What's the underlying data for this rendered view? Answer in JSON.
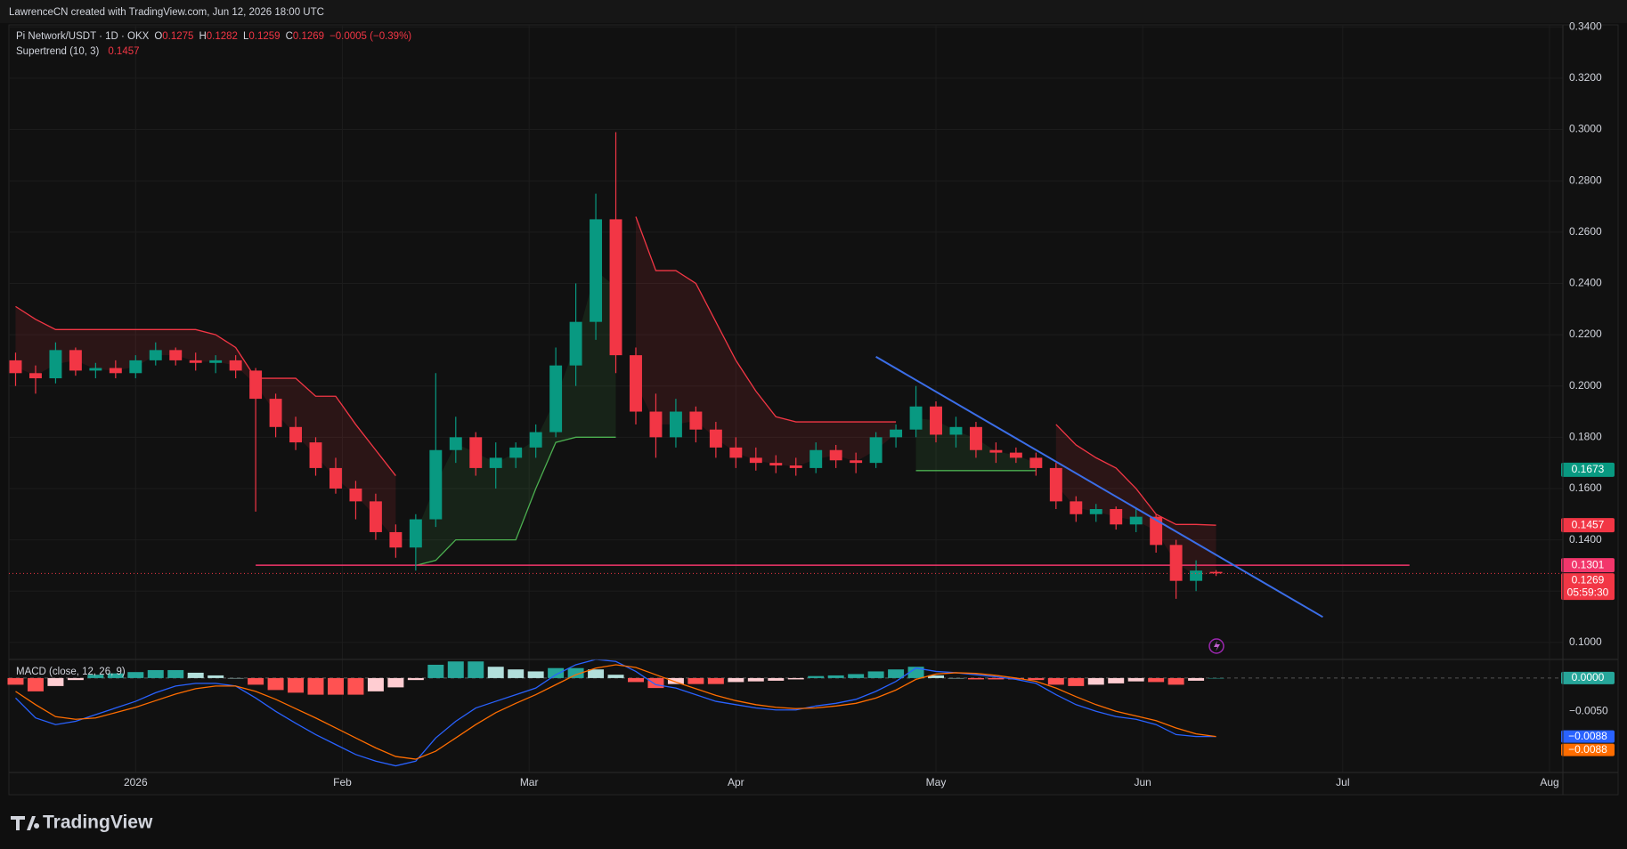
{
  "header": {
    "watermark": "LawrenceCN created with TradingView.com, Jun 12, 2026 18:00 UTC",
    "brand": "TradingView"
  },
  "chart_data": [
    {
      "type": "candlestick",
      "title": "Pi Network/USDT · 1D · OKX",
      "ohlc_letters": [
        "O",
        "H",
        "L",
        "C"
      ],
      "change": "−0.0005 (−0.39%)",
      "x": [
        -18,
        -15,
        -12,
        -9,
        -6,
        -3,
        0,
        3,
        6,
        9,
        12,
        15,
        18,
        21,
        24,
        27,
        30,
        33,
        36,
        39,
        42,
        45,
        48,
        51,
        54,
        57,
        60,
        63,
        66,
        69,
        72,
        75,
        78,
        81,
        84,
        87,
        90,
        93,
        96,
        99,
        102,
        105,
        108,
        111,
        114,
        117,
        120,
        123,
        126,
        129,
        132,
        135,
        138,
        141,
        144,
        147,
        150,
        153,
        156,
        159,
        162
      ],
      "open": [
        0.21,
        0.205,
        0.203,
        0.214,
        0.206,
        0.207,
        0.205,
        0.21,
        0.214,
        0.21,
        0.209,
        0.21,
        0.206,
        0.195,
        0.184,
        0.178,
        0.168,
        0.16,
        0.155,
        0.143,
        0.137,
        0.148,
        0.175,
        0.18,
        0.168,
        0.172,
        0.176,
        0.182,
        0.208,
        0.225,
        0.265,
        0.212,
        0.19,
        0.18,
        0.19,
        0.183,
        0.176,
        0.172,
        0.17,
        0.169,
        0.168,
        0.175,
        0.171,
        0.17,
        0.18,
        0.183,
        0.192,
        0.181,
        0.184,
        0.175,
        0.174,
        0.172,
        0.168,
        0.155,
        0.15,
        0.152,
        0.146,
        0.149,
        0.138,
        0.124,
        0.1275
      ],
      "high": [
        0.213,
        0.208,
        0.217,
        0.215,
        0.209,
        0.21,
        0.212,
        0.217,
        0.215,
        0.213,
        0.212,
        0.212,
        0.207,
        0.197,
        0.188,
        0.18,
        0.172,
        0.163,
        0.158,
        0.146,
        0.15,
        0.205,
        0.188,
        0.182,
        0.178,
        0.178,
        0.185,
        0.215,
        0.24,
        0.275,
        0.299,
        0.215,
        0.197,
        0.195,
        0.192,
        0.186,
        0.18,
        0.176,
        0.173,
        0.172,
        0.178,
        0.177,
        0.174,
        0.182,
        0.185,
        0.2,
        0.194,
        0.188,
        0.186,
        0.178,
        0.176,
        0.174,
        0.17,
        0.157,
        0.154,
        0.153,
        0.152,
        0.15,
        0.14,
        0.132,
        0.1282
      ],
      "low": [
        0.2,
        0.197,
        0.201,
        0.204,
        0.203,
        0.203,
        0.203,
        0.208,
        0.208,
        0.206,
        0.205,
        0.203,
        0.151,
        0.18,
        0.175,
        0.165,
        0.158,
        0.148,
        0.14,
        0.133,
        0.128,
        0.145,
        0.17,
        0.165,
        0.16,
        0.168,
        0.172,
        0.18,
        0.2,
        0.218,
        0.205,
        0.185,
        0.172,
        0.176,
        0.178,
        0.172,
        0.168,
        0.167,
        0.166,
        0.165,
        0.166,
        0.168,
        0.166,
        0.168,
        0.176,
        0.18,
        0.178,
        0.176,
        0.172,
        0.17,
        0.17,
        0.165,
        0.152,
        0.147,
        0.147,
        0.144,
        0.143,
        0.135,
        0.117,
        0.12,
        0.1259
      ],
      "close": [
        0.205,
        0.203,
        0.214,
        0.206,
        0.207,
        0.205,
        0.21,
        0.214,
        0.21,
        0.209,
        0.21,
        0.206,
        0.195,
        0.184,
        0.178,
        0.168,
        0.16,
        0.155,
        0.143,
        0.137,
        0.148,
        0.175,
        0.18,
        0.168,
        0.172,
        0.176,
        0.182,
        0.208,
        0.225,
        0.265,
        0.212,
        0.19,
        0.18,
        0.19,
        0.183,
        0.176,
        0.172,
        0.17,
        0.169,
        0.168,
        0.175,
        0.171,
        0.17,
        0.18,
        0.183,
        0.192,
        0.181,
        0.184,
        0.175,
        0.174,
        0.172,
        0.168,
        0.155,
        0.15,
        0.152,
        0.146,
        0.149,
        0.138,
        0.124,
        0.128,
        0.1269
      ],
      "up_color": "#089981",
      "down_color": "#f23645",
      "xlim": [
        -19,
        214
      ],
      "xticks": [
        {
          "value": 0,
          "label": "2026"
        },
        {
          "value": 31,
          "label": "Feb"
        },
        {
          "value": 59,
          "label": "Mar"
        },
        {
          "value": 90,
          "label": "Apr"
        },
        {
          "value": 120,
          "label": "May"
        },
        {
          "value": 151,
          "label": "Jun"
        },
        {
          "value": 181,
          "label": "Jul"
        },
        {
          "value": 212,
          "label": "Aug"
        }
      ],
      "ylim": [
        0.0937,
        0.3408
      ],
      "yticks": [
        {
          "value": 0.1,
          "label": "0.1000"
        },
        {
          "value": 0.12,
          "label": "0.1200"
        },
        {
          "value": 0.14,
          "label": "0.1400"
        },
        {
          "value": 0.16,
          "label": "0.1600"
        },
        {
          "value": 0.18,
          "label": "0.1800"
        },
        {
          "value": 0.2,
          "label": "0.2000"
        },
        {
          "value": 0.22,
          "label": "0.2200"
        },
        {
          "value": 0.24,
          "label": "0.2400"
        },
        {
          "value": 0.26,
          "label": "0.2600"
        },
        {
          "value": 0.28,
          "label": "0.2800"
        },
        {
          "value": 0.3,
          "label": "0.3000"
        },
        {
          "value": 0.32,
          "label": "0.3200"
        },
        {
          "value": 0.34,
          "label": "0.3400"
        }
      ],
      "grid": true,
      "supertrend": {
        "label": "Supertrend (10, 3)",
        "down": {
          "color": "#f23645",
          "values": [
            0.231,
            0.226,
            0.222,
            0.222,
            0.222,
            0.222,
            0.222,
            0.222,
            0.222,
            0.222,
            0.22,
            0.215,
            0.203,
            0.203,
            0.203,
            0.196,
            0.196,
            0.185,
            0.175,
            0.165,
            null,
            null,
            null,
            null,
            null,
            null,
            null,
            null,
            null,
            null,
            null,
            0.266,
            0.245,
            0.245,
            0.24,
            0.225,
            0.21,
            0.198,
            0.188,
            0.186,
            0.186,
            0.186,
            0.186,
            0.186,
            0.186,
            null,
            null,
            null,
            null,
            null,
            null,
            null,
            0.185,
            0.177,
            0.172,
            0.168,
            0.16,
            0.15,
            0.146,
            0.146,
            0.1457
          ]
        },
        "up": {
          "color": "#4caf50",
          "values": [
            null,
            null,
            null,
            null,
            null,
            null,
            null,
            null,
            null,
            null,
            null,
            null,
            null,
            null,
            null,
            null,
            null,
            null,
            null,
            null,
            0.13,
            0.132,
            0.14,
            0.14,
            0.14,
            0.14,
            0.16,
            0.178,
            0.18,
            0.18,
            0.18,
            null,
            null,
            null,
            null,
            null,
            null,
            null,
            null,
            null,
            null,
            null,
            null,
            null,
            null,
            0.167,
            0.167,
            0.167,
            0.167,
            0.167,
            0.167,
            0.167,
            null,
            null,
            null,
            null,
            null,
            null,
            null,
            null,
            null
          ]
        }
      },
      "markers": [
        {
          "value": 0.1673,
          "color": "#089981"
        }
      ],
      "hline": {
        "value": 0.1301,
        "from": 18,
        "to": 191,
        "color": "#f2366b"
      },
      "trendline": {
        "x": [
          111,
          178
        ],
        "y": [
          0.2114,
          0.1099
        ],
        "color": "#3b6ee8"
      },
      "countdown": "05:59:30"
    },
    {
      "type": "macd",
      "title": "MACD (close, 12, 26, 9)",
      "macd": {
        "color": "#2962ff",
        "values": [
          -0.003,
          -0.006,
          -0.007,
          -0.0065,
          -0.0055,
          -0.0045,
          -0.0035,
          -0.0022,
          -0.0012,
          -0.0008,
          -0.0008,
          -0.0012,
          -0.003,
          -0.005,
          -0.0068,
          -0.0085,
          -0.01,
          -0.0115,
          -0.0125,
          -0.0132,
          -0.0125,
          -0.009,
          -0.0065,
          -0.0045,
          -0.0035,
          -0.0025,
          -0.0015,
          0.0005,
          0.002,
          0.0028,
          0.0025,
          0.001,
          -0.001,
          -0.0015,
          -0.0025,
          -0.0035,
          -0.004,
          -0.0045,
          -0.0048,
          -0.0048,
          -0.0042,
          -0.0038,
          -0.0032,
          -0.002,
          -0.0005,
          0.0015,
          0.001,
          0.0008,
          0.0005,
          0.0002,
          -0.0002,
          -0.0008,
          -0.0025,
          -0.004,
          -0.005,
          -0.0058,
          -0.0062,
          -0.007,
          -0.0085,
          -0.0088,
          -0.0088
        ]
      },
      "signal": {
        "color": "#ff6d00",
        "values": [
          -0.002,
          -0.004,
          -0.0058,
          -0.0062,
          -0.006,
          -0.0052,
          -0.0044,
          -0.0034,
          -0.0024,
          -0.0016,
          -0.0012,
          -0.0012,
          -0.002,
          -0.0032,
          -0.0046,
          -0.006,
          -0.0075,
          -0.009,
          -0.0105,
          -0.0118,
          -0.0122,
          -0.011,
          -0.009,
          -0.007,
          -0.0052,
          -0.0038,
          -0.0025,
          -0.001,
          0.0005,
          0.0015,
          0.002,
          0.0016,
          0.0005,
          -0.0006,
          -0.0016,
          -0.0026,
          -0.0034,
          -0.004,
          -0.0044,
          -0.0046,
          -0.0045,
          -0.0042,
          -0.0038,
          -0.003,
          -0.0018,
          -0.0002,
          0.0006,
          0.0008,
          0.0007,
          0.0004,
          0.0,
          -0.0005,
          -0.0015,
          -0.0028,
          -0.004,
          -0.005,
          -0.0057,
          -0.0064,
          -0.0075,
          -0.0084,
          -0.0088
        ]
      },
      "histogram": {
        "colors": {
          "pos_up": "#26a69a",
          "pos_down": "#b2dfdb",
          "neg_down": "#ff5252",
          "neg_up": "#ffcdd2"
        },
        "values": [
          -0.001,
          -0.002,
          -0.0012,
          -0.0003,
          0.0005,
          0.0007,
          0.0009,
          0.0012,
          0.0012,
          0.0008,
          0.0004,
          0,
          -0.001,
          -0.0018,
          -0.0022,
          -0.0025,
          -0.0025,
          -0.0025,
          -0.002,
          -0.0014,
          -0.0003,
          0.002,
          0.0025,
          0.0025,
          0.0017,
          0.0013,
          0.001,
          0.0015,
          0.0015,
          0.0013,
          0.0005,
          -0.0006,
          -0.0015,
          -0.0009,
          -0.0009,
          -0.0009,
          -0.0006,
          -0.0005,
          -0.0004,
          -0.0002,
          0.0003,
          0.0004,
          0.0006,
          0.001,
          0.0013,
          0.0017,
          0.0004,
          0,
          -0.0002,
          -0.0002,
          -0.0002,
          -0.0003,
          -0.001,
          -0.0012,
          -0.001,
          -0.0008,
          -0.0005,
          -0.0006,
          -0.001,
          -0.0004,
          0
        ]
      },
      "ylim": [
        -0.0142,
        0.0028
      ],
      "yticks": [
        {
          "value": -0.005,
          "label": "−0.0050"
        }
      ],
      "last_labels": [
        {
          "value": 0,
          "label": "0.0000",
          "color": "#26a69a"
        },
        {
          "value": -0.0088,
          "label": "−0.0088",
          "color": "#2962ff"
        },
        {
          "value": -0.0088,
          "label": "−0.0088",
          "color": "#ff6d00"
        }
      ]
    }
  ]
}
